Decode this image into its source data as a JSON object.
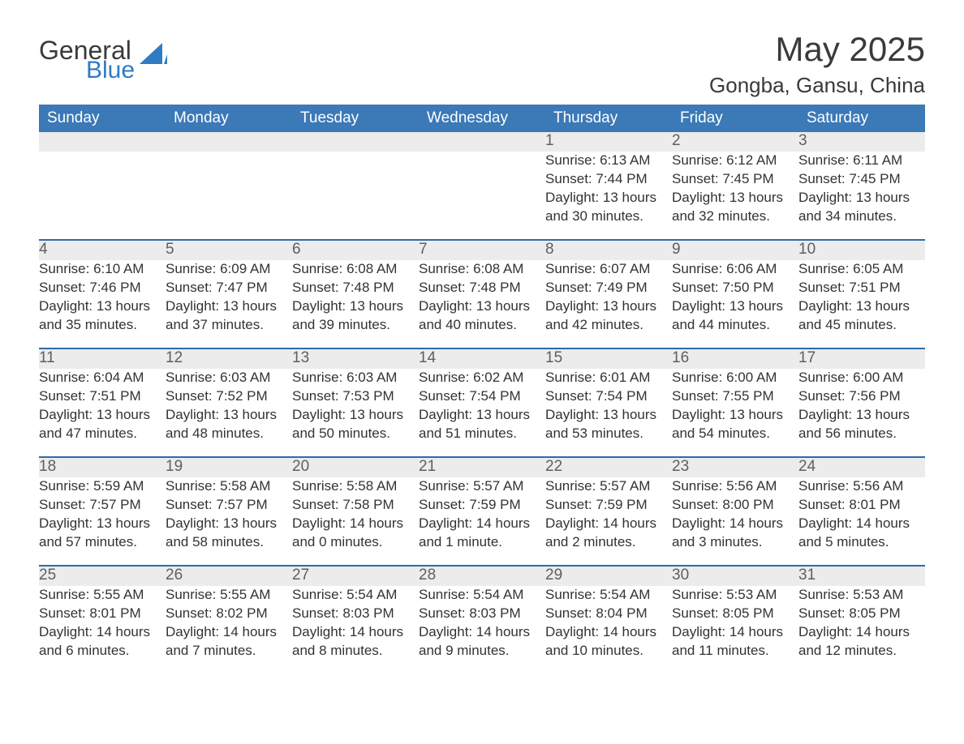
{
  "brand": {
    "word1": "General",
    "word2": "Blue"
  },
  "title": "May 2025",
  "location": "Gongba, Gansu, China",
  "colors": {
    "header_blue": "#3b79b7",
    "divider_blue": "#2f6aa8",
    "row_gray": "#ececec",
    "logo_blue": "#2f7bc4",
    "title_color": "#3a3a3a",
    "body_text": "#333333",
    "page_bg": "#ffffff"
  },
  "dayHeaders": [
    "Sunday",
    "Monday",
    "Tuesday",
    "Wednesday",
    "Thursday",
    "Friday",
    "Saturday"
  ],
  "labels": {
    "sunrise": "Sunrise:",
    "sunset": "Sunset:",
    "daylight": "Daylight:"
  },
  "weeks": [
    [
      null,
      null,
      null,
      null,
      {
        "n": "1",
        "sunrise": "6:13 AM",
        "sunset": "7:44 PM",
        "daylight": "13 hours and 30 minutes."
      },
      {
        "n": "2",
        "sunrise": "6:12 AM",
        "sunset": "7:45 PM",
        "daylight": "13 hours and 32 minutes."
      },
      {
        "n": "3",
        "sunrise": "6:11 AM",
        "sunset": "7:45 PM",
        "daylight": "13 hours and 34 minutes."
      }
    ],
    [
      {
        "n": "4",
        "sunrise": "6:10 AM",
        "sunset": "7:46 PM",
        "daylight": "13 hours and 35 minutes."
      },
      {
        "n": "5",
        "sunrise": "6:09 AM",
        "sunset": "7:47 PM",
        "daylight": "13 hours and 37 minutes."
      },
      {
        "n": "6",
        "sunrise": "6:08 AM",
        "sunset": "7:48 PM",
        "daylight": "13 hours and 39 minutes."
      },
      {
        "n": "7",
        "sunrise": "6:08 AM",
        "sunset": "7:48 PM",
        "daylight": "13 hours and 40 minutes."
      },
      {
        "n": "8",
        "sunrise": "6:07 AM",
        "sunset": "7:49 PM",
        "daylight": "13 hours and 42 minutes."
      },
      {
        "n": "9",
        "sunrise": "6:06 AM",
        "sunset": "7:50 PM",
        "daylight": "13 hours and 44 minutes."
      },
      {
        "n": "10",
        "sunrise": "6:05 AM",
        "sunset": "7:51 PM",
        "daylight": "13 hours and 45 minutes."
      }
    ],
    [
      {
        "n": "11",
        "sunrise": "6:04 AM",
        "sunset": "7:51 PM",
        "daylight": "13 hours and 47 minutes."
      },
      {
        "n": "12",
        "sunrise": "6:03 AM",
        "sunset": "7:52 PM",
        "daylight": "13 hours and 48 minutes."
      },
      {
        "n": "13",
        "sunrise": "6:03 AM",
        "sunset": "7:53 PM",
        "daylight": "13 hours and 50 minutes."
      },
      {
        "n": "14",
        "sunrise": "6:02 AM",
        "sunset": "7:54 PM",
        "daylight": "13 hours and 51 minutes."
      },
      {
        "n": "15",
        "sunrise": "6:01 AM",
        "sunset": "7:54 PM",
        "daylight": "13 hours and 53 minutes."
      },
      {
        "n": "16",
        "sunrise": "6:00 AM",
        "sunset": "7:55 PM",
        "daylight": "13 hours and 54 minutes."
      },
      {
        "n": "17",
        "sunrise": "6:00 AM",
        "sunset": "7:56 PM",
        "daylight": "13 hours and 56 minutes."
      }
    ],
    [
      {
        "n": "18",
        "sunrise": "5:59 AM",
        "sunset": "7:57 PM",
        "daylight": "13 hours and 57 minutes."
      },
      {
        "n": "19",
        "sunrise": "5:58 AM",
        "sunset": "7:57 PM",
        "daylight": "13 hours and 58 minutes."
      },
      {
        "n": "20",
        "sunrise": "5:58 AM",
        "sunset": "7:58 PM",
        "daylight": "14 hours and 0 minutes."
      },
      {
        "n": "21",
        "sunrise": "5:57 AM",
        "sunset": "7:59 PM",
        "daylight": "14 hours and 1 minute."
      },
      {
        "n": "22",
        "sunrise": "5:57 AM",
        "sunset": "7:59 PM",
        "daylight": "14 hours and 2 minutes."
      },
      {
        "n": "23",
        "sunrise": "5:56 AM",
        "sunset": "8:00 PM",
        "daylight": "14 hours and 3 minutes."
      },
      {
        "n": "24",
        "sunrise": "5:56 AM",
        "sunset": "8:01 PM",
        "daylight": "14 hours and 5 minutes."
      }
    ],
    [
      {
        "n": "25",
        "sunrise": "5:55 AM",
        "sunset": "8:01 PM",
        "daylight": "14 hours and 6 minutes."
      },
      {
        "n": "26",
        "sunrise": "5:55 AM",
        "sunset": "8:02 PM",
        "daylight": "14 hours and 7 minutes."
      },
      {
        "n": "27",
        "sunrise": "5:54 AM",
        "sunset": "8:03 PM",
        "daylight": "14 hours and 8 minutes."
      },
      {
        "n": "28",
        "sunrise": "5:54 AM",
        "sunset": "8:03 PM",
        "daylight": "14 hours and 9 minutes."
      },
      {
        "n": "29",
        "sunrise": "5:54 AM",
        "sunset": "8:04 PM",
        "daylight": "14 hours and 10 minutes."
      },
      {
        "n": "30",
        "sunrise": "5:53 AM",
        "sunset": "8:05 PM",
        "daylight": "14 hours and 11 minutes."
      },
      {
        "n": "31",
        "sunrise": "5:53 AM",
        "sunset": "8:05 PM",
        "daylight": "14 hours and 12 minutes."
      }
    ]
  ]
}
